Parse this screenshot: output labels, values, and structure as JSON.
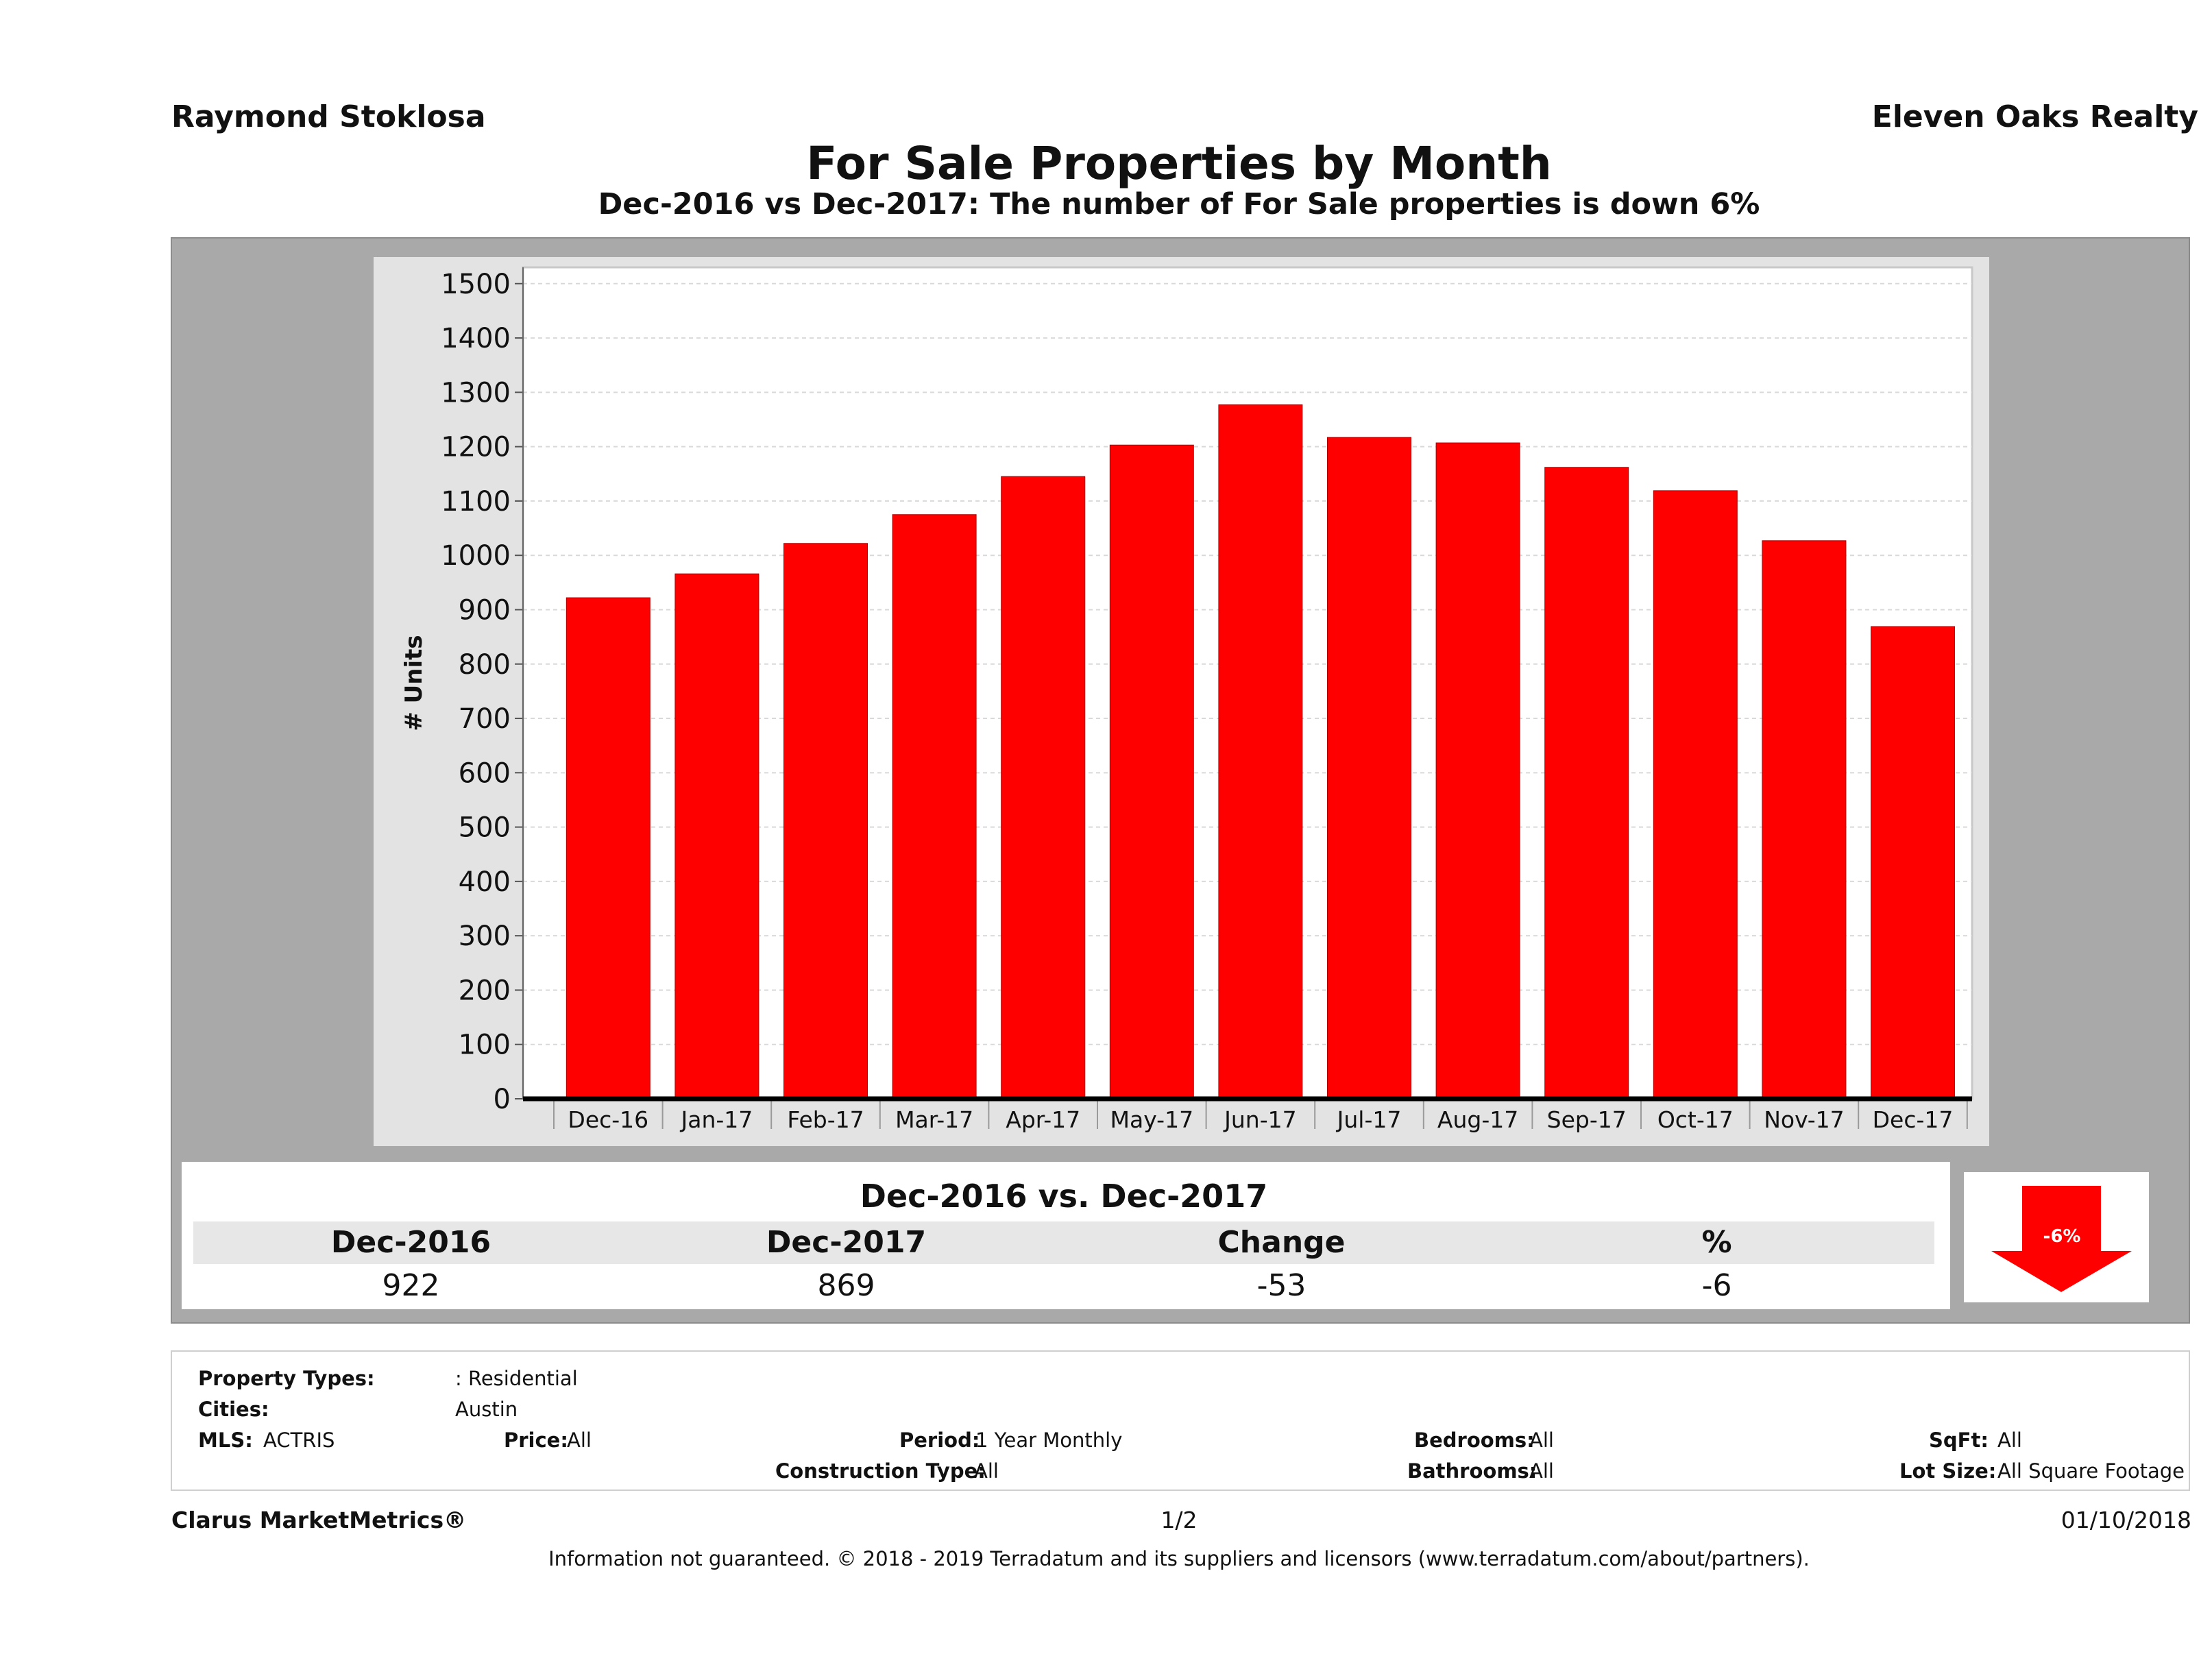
{
  "header": {
    "agent_name": "Raymond Stoklosa",
    "company_name": "Eleven Oaks Realty",
    "title": "For Sale Properties by Month",
    "subtitle": "Dec-2016 vs Dec-2017: The number of For Sale  properties is down 6%"
  },
  "chart_data": {
    "type": "bar",
    "categories": [
      "Dec-16",
      "Jan-17",
      "Feb-17",
      "Mar-17",
      "Apr-17",
      "May-17",
      "Jun-17",
      "Jul-17",
      "Aug-17",
      "Sep-17",
      "Oct-17",
      "Nov-17",
      "Dec-17"
    ],
    "values": [
      922,
      966,
      1022,
      1075,
      1145,
      1203,
      1277,
      1217,
      1207,
      1162,
      1119,
      1027,
      869
    ],
    "xlabel": "",
    "ylabel": "# Units",
    "ylim": [
      0,
      1500
    ],
    "yticks": [
      0,
      100,
      200,
      300,
      400,
      500,
      600,
      700,
      800,
      900,
      1000,
      1100,
      1200,
      1300,
      1400,
      1500
    ],
    "bar_color": "#ff0000",
    "grid": true
  },
  "comparison": {
    "title": "Dec-2016 vs. Dec-2017",
    "headers": [
      "Dec-2016",
      "Dec-2017",
      "Change",
      "%"
    ],
    "values": [
      "922",
      "869",
      "-53",
      "-6"
    ],
    "arrow_label": "-6%",
    "arrow_color": "#ff0000"
  },
  "criteria": {
    "property_types_label": "Property Types:",
    "property_types_value": ": Residential",
    "cities_label": "Cities:",
    "cities_value": "Austin",
    "mls_label": "MLS:",
    "mls_value": "ACTRIS",
    "price_label": "Price:",
    "price_value": "All",
    "period_label": "Period:",
    "period_value": "1 Year Monthly",
    "construction_label": "Construction Type:",
    "construction_value": "All",
    "bedrooms_label": "Bedrooms:",
    "bedrooms_value": "All",
    "bathrooms_label": "Bathrooms:",
    "bathrooms_value": "All",
    "sqft_label": "SqFt:",
    "sqft_value": "All",
    "lotsize_label": "Lot Size:",
    "lotsize_value": "All Square Footage"
  },
  "footer": {
    "brand": "Clarus MarketMetrics®",
    "page": "1/2",
    "date": "01/10/2018",
    "disclaimer": "Information not guaranteed. © 2018 - 2019 Terradatum and its suppliers and licensors (www.terradatum.com/about/partners)."
  }
}
